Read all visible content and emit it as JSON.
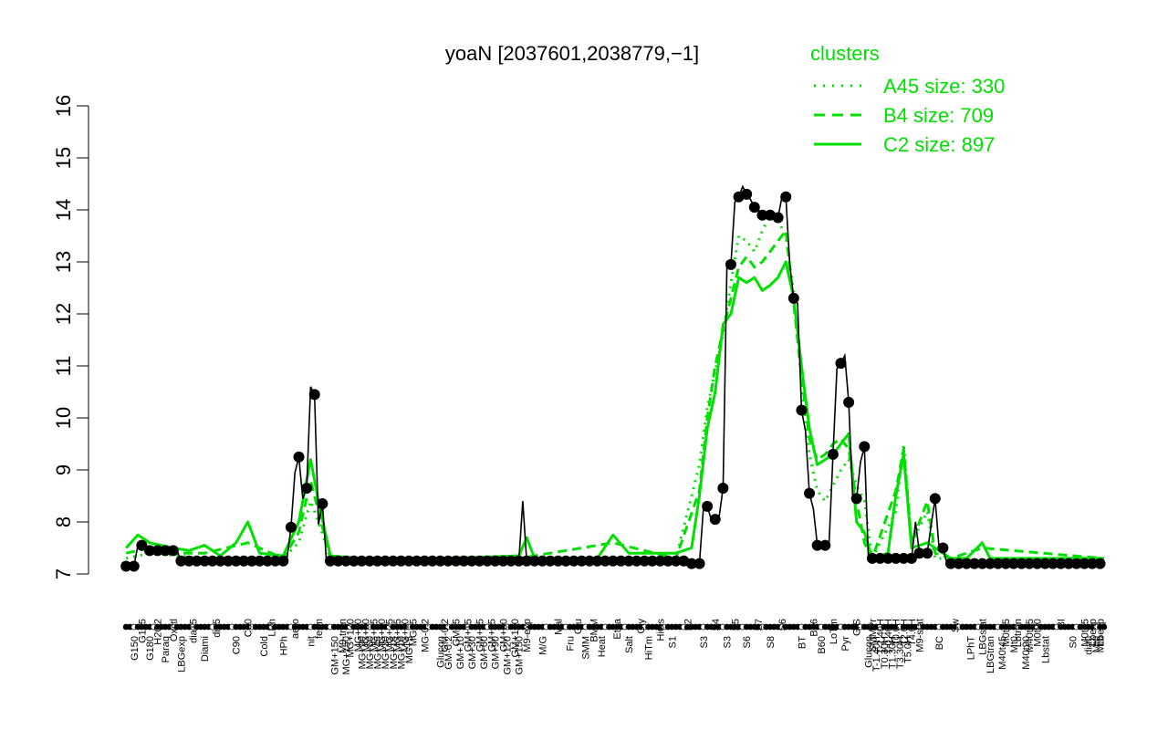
{
  "chart_data": {
    "type": "line",
    "title": "yoaN [2037601,2038779,−1]",
    "xlabel": "",
    "ylabel": "",
    "ylim": [
      7,
      16
    ],
    "yticks": [
      "7",
      "8",
      "9",
      "10",
      "11",
      "12",
      "13",
      "14",
      "15",
      "16"
    ],
    "legend": {
      "title": "clusters",
      "placement": "top-right",
      "entries": [
        {
          "label": "A45 size: 330",
          "style": "dotted"
        },
        {
          "label": "B4 size: 709",
          "style": "dashed"
        },
        {
          "label": "C2 size: 897",
          "style": "solid"
        }
      ]
    },
    "colors": {
      "cluster": "#00e000",
      "gene": "#000000"
    },
    "x_labels_lower": [
      {
        "i": 2,
        "label": "G150"
      },
      {
        "i": 6,
        "label": "G180"
      },
      {
        "i": 10,
        "label": "Paraq"
      },
      {
        "i": 14,
        "label": "LBGexp"
      },
      {
        "i": 20,
        "label": "Diami"
      },
      {
        "i": 28,
        "label": "C90"
      },
      {
        "i": 35,
        "label": "Cold"
      },
      {
        "i": 40,
        "label": "HPh"
      },
      {
        "i": 47,
        "label": "nit"
      },
      {
        "i": 53,
        "label": "GM+150"
      },
      {
        "i": 56,
        "label": "MG+150"
      },
      {
        "i": 60,
        "label": "MG+90"
      },
      {
        "i": 62,
        "label": "MG+60"
      },
      {
        "i": 64,
        "label": "MG+45"
      },
      {
        "i": 66,
        "label": "MG+30"
      },
      {
        "i": 68,
        "label": "MG+15"
      },
      {
        "i": 70,
        "label": "MG+10"
      },
      {
        "i": 72,
        "label": "MG+5"
      },
      {
        "i": 80,
        "label": "Glucon"
      },
      {
        "i": 82,
        "label": "GM-0.2"
      },
      {
        "i": 85,
        "label": "GM+10"
      },
      {
        "i": 88,
        "label": "GM+30"
      },
      {
        "i": 91,
        "label": "GM+60"
      },
      {
        "i": 94,
        "label": "GM+90"
      },
      {
        "i": 97,
        "label": "GM+120"
      },
      {
        "i": 100,
        "label": "GM+150"
      },
      {
        "i": 106,
        "label": "M/G"
      },
      {
        "i": 113,
        "label": "Fru"
      },
      {
        "i": 117,
        "label": "SMM"
      },
      {
        "i": 121,
        "label": "Heat"
      },
      {
        "i": 128,
        "label": "Salt"
      },
      {
        "i": 133,
        "label": "HiTm"
      },
      {
        "i": 139,
        "label": "S1"
      },
      {
        "i": 147,
        "label": "S3"
      },
      {
        "i": 153,
        "label": "S3"
      },
      {
        "i": 158,
        "label": "S6"
      },
      {
        "i": 164,
        "label": "S8"
      },
      {
        "i": 172,
        "label": "BT"
      },
      {
        "i": 177,
        "label": "B60"
      },
      {
        "i": 183,
        "label": "Pyr"
      },
      {
        "i": 189,
        "label": "Glucon"
      },
      {
        "i": 191,
        "label": "T-1.40H"
      },
      {
        "i": 193,
        "label": "T0.30H"
      },
      {
        "i": 195,
        "label": "T1.30H"
      },
      {
        "i": 197,
        "label": "T3.30H"
      },
      {
        "i": 199,
        "label": "T5.0H"
      },
      {
        "i": 207,
        "label": "BC"
      },
      {
        "i": 215,
        "label": "LPhT"
      },
      {
        "i": 220,
        "label": "LBGtran"
      },
      {
        "i": 223,
        "label": "M40t45"
      },
      {
        "i": 226,
        "label": "Mt0"
      },
      {
        "i": 229,
        "label": "M40t90"
      },
      {
        "i": 234,
        "label": "Lbstat"
      },
      {
        "i": 241,
        "label": "S0"
      },
      {
        "i": 245,
        "label": "dia0"
      },
      {
        "i": 247,
        "label": "Mt0"
      },
      {
        "i": 248,
        "label": "Mt0"
      }
    ],
    "x_labels_upper": [
      {
        "i": 4,
        "label": "G135"
      },
      {
        "i": 8,
        "label": "H2O2"
      },
      {
        "i": 12,
        "label": "Oxctl"
      },
      {
        "i": 17,
        "label": "dia15"
      },
      {
        "i": 23,
        "label": "dia5"
      },
      {
        "i": 31,
        "label": "C30"
      },
      {
        "i": 37,
        "label": "LPh"
      },
      {
        "i": 43,
        "label": "aero"
      },
      {
        "i": 49,
        "label": "ferm"
      },
      {
        "i": 55,
        "label": "M9-tran"
      },
      {
        "i": 57,
        "label": "MG+120"
      },
      {
        "i": 59,
        "label": "MG+90"
      },
      {
        "i": 61,
        "label": "MG+60"
      },
      {
        "i": 63,
        "label": "MG+45"
      },
      {
        "i": 65,
        "label": "MG+30"
      },
      {
        "i": 67,
        "label": "MG+25"
      },
      {
        "i": 69,
        "label": "MG+15"
      },
      {
        "i": 71,
        "label": "MG+10"
      },
      {
        "i": 73,
        "label": "MG+5"
      },
      {
        "i": 76,
        "label": "MG-0.2"
      },
      {
        "i": 81,
        "label": "GM-0.2"
      },
      {
        "i": 84,
        "label": "GM+5"
      },
      {
        "i": 87,
        "label": "GM+15"
      },
      {
        "i": 90,
        "label": "GM+25"
      },
      {
        "i": 93,
        "label": "GM+45"
      },
      {
        "i": 96,
        "label": "GM+90"
      },
      {
        "i": 99,
        "label": "GM+120"
      },
      {
        "i": 102,
        "label": "M9-exp"
      },
      {
        "i": 110,
        "label": "Mal"
      },
      {
        "i": 115,
        "label": "Glu"
      },
      {
        "i": 119,
        "label": "BMM"
      },
      {
        "i": 125,
        "label": "Etha"
      },
      {
        "i": 131,
        "label": "Gly"
      },
      {
        "i": 136,
        "label": "HiOs"
      },
      {
        "i": 143,
        "label": "S2"
      },
      {
        "i": 150,
        "label": "S4"
      },
      {
        "i": 155,
        "label": "S5"
      },
      {
        "i": 161,
        "label": "S7"
      },
      {
        "i": 167,
        "label": "S6"
      },
      {
        "i": 175,
        "label": "B36"
      },
      {
        "i": 180,
        "label": "LoTm"
      },
      {
        "i": 186,
        "label": "G/S"
      },
      {
        "i": 190,
        "label": "SMMPr"
      },
      {
        "i": 192,
        "label": "T-2.40H"
      },
      {
        "i": 194,
        "label": "T-0.40H"
      },
      {
        "i": 196,
        "label": "T0.0H"
      },
      {
        "i": 198,
        "label": "T2.0H"
      },
      {
        "i": 200,
        "label": "T4.0H"
      },
      {
        "i": 202,
        "label": "M9-stat"
      },
      {
        "i": 211,
        "label": "Sw"
      },
      {
        "i": 218,
        "label": "LBGstat"
      },
      {
        "i": 224,
        "label": "M0t45"
      },
      {
        "i": 227,
        "label": "Lbtran"
      },
      {
        "i": 230,
        "label": "M40t45"
      },
      {
        "i": 232,
        "label": "M0t90"
      },
      {
        "i": 238,
        "label": "BI"
      },
      {
        "i": 244,
        "label": "M0t45"
      },
      {
        "i": 246,
        "label": "Lbexp"
      },
      {
        "i": 248,
        "label": "Lbexp"
      }
    ],
    "x_count": 250,
    "gene_profile": [
      {
        "from": 0,
        "to": 2,
        "y": 7.15
      },
      {
        "from": 3,
        "to": 4,
        "y": 7.55
      },
      {
        "from": 5,
        "to": 13,
        "y": 7.45
      },
      {
        "from": 14,
        "to": 40,
        "y": 7.25
      },
      {
        "from": 41,
        "to": 41,
        "y": 7.3
      },
      {
        "from": 42,
        "to": 42,
        "y": 7.9
      },
      {
        "from": 43,
        "to": 43,
        "y": 8.95
      },
      {
        "from": 44,
        "to": 44,
        "y": 9.25
      },
      {
        "from": 45,
        "to": 45,
        "y": 8.45
      },
      {
        "from": 46,
        "to": 46,
        "y": 8.65
      },
      {
        "from": 47,
        "to": 47,
        "y": 10.6
      },
      {
        "from": 48,
        "to": 48,
        "y": 10.45
      },
      {
        "from": 49,
        "to": 49,
        "y": 7.95
      },
      {
        "from": 50,
        "to": 50,
        "y": 8.35
      },
      {
        "from": 51,
        "to": 100,
        "y": 7.25
      },
      {
        "from": 101,
        "to": 101,
        "y": 8.4
      },
      {
        "from": 102,
        "to": 143,
        "y": 7.25
      },
      {
        "from": 144,
        "to": 146,
        "y": 7.2
      },
      {
        "from": 147,
        "to": 147,
        "y": 8.25
      },
      {
        "from": 148,
        "to": 148,
        "y": 8.3
      },
      {
        "from": 149,
        "to": 150,
        "y": 8.05
      },
      {
        "from": 151,
        "to": 151,
        "y": 8.1
      },
      {
        "from": 152,
        "to": 152,
        "y": 8.65
      },
      {
        "from": 153,
        "to": 153,
        "y": 13.0
      },
      {
        "from": 154,
        "to": 154,
        "y": 12.95
      },
      {
        "from": 155,
        "to": 155,
        "y": 14.15
      },
      {
        "from": 156,
        "to": 156,
        "y": 14.25
      },
      {
        "from": 157,
        "to": 157,
        "y": 14.45
      },
      {
        "from": 158,
        "to": 158,
        "y": 14.3
      },
      {
        "from": 159,
        "to": 159,
        "y": 14.2
      },
      {
        "from": 160,
        "to": 160,
        "y": 14.05
      },
      {
        "from": 161,
        "to": 161,
        "y": 14.0
      },
      {
        "from": 162,
        "to": 163,
        "y": 13.9
      },
      {
        "from": 164,
        "to": 165,
        "y": 13.9
      },
      {
        "from": 166,
        "to": 166,
        "y": 13.85
      },
      {
        "from": 167,
        "to": 168,
        "y": 14.25
      },
      {
        "from": 169,
        "to": 169,
        "y": 12.95
      },
      {
        "from": 170,
        "to": 170,
        "y": 12.3
      },
      {
        "from": 171,
        "to": 171,
        "y": 12.2
      },
      {
        "from": 172,
        "to": 172,
        "y": 10.15
      },
      {
        "from": 173,
        "to": 173,
        "y": 9.75
      },
      {
        "from": 174,
        "to": 174,
        "y": 8.55
      },
      {
        "from": 175,
        "to": 175,
        "y": 8.25
      },
      {
        "from": 176,
        "to": 178,
        "y": 7.55
      },
      {
        "from": 179,
        "to": 179,
        "y": 7.6
      },
      {
        "from": 180,
        "to": 180,
        "y": 9.3
      },
      {
        "from": 181,
        "to": 181,
        "y": 10.95
      },
      {
        "from": 182,
        "to": 182,
        "y": 11.05
      },
      {
        "from": 183,
        "to": 183,
        "y": 11.2
      },
      {
        "from": 184,
        "to": 184,
        "y": 10.3
      },
      {
        "from": 185,
        "to": 185,
        "y": 8.5
      },
      {
        "from": 186,
        "to": 186,
        "y": 8.45
      },
      {
        "from": 187,
        "to": 187,
        "y": 9.15
      },
      {
        "from": 188,
        "to": 188,
        "y": 9.45
      },
      {
        "from": 189,
        "to": 200,
        "y": 7.3
      },
      {
        "from": 201,
        "to": 201,
        "y": 8.0
      },
      {
        "from": 202,
        "to": 204,
        "y": 7.4
      },
      {
        "from": 205,
        "to": 205,
        "y": 7.95
      },
      {
        "from": 206,
        "to": 206,
        "y": 8.45
      },
      {
        "from": 207,
        "to": 208,
        "y": 7.5
      },
      {
        "from": 209,
        "to": 249,
        "y": 7.2
      }
    ],
    "cluster_C2": [
      [
        0,
        7.5
      ],
      [
        3,
        7.75
      ],
      [
        6,
        7.6
      ],
      [
        12,
        7.5
      ],
      [
        16,
        7.45
      ],
      [
        20,
        7.55
      ],
      [
        24,
        7.35
      ],
      [
        28,
        7.6
      ],
      [
        31,
        8.0
      ],
      [
        34,
        7.4
      ],
      [
        40,
        7.35
      ],
      [
        44,
        8.0
      ],
      [
        47,
        9.2
      ],
      [
        49,
        8.4
      ],
      [
        52,
        7.35
      ],
      [
        60,
        7.3
      ],
      [
        80,
        7.3
      ],
      [
        100,
        7.35
      ],
      [
        102,
        7.7
      ],
      [
        104,
        7.3
      ],
      [
        120,
        7.3
      ],
      [
        124,
        7.75
      ],
      [
        128,
        7.4
      ],
      [
        140,
        7.4
      ],
      [
        144,
        7.5
      ],
      [
        146,
        8.5
      ],
      [
        148,
        9.8
      ],
      [
        150,
        10.5
      ],
      [
        152,
        11.8
      ],
      [
        154,
        12.0
      ],
      [
        156,
        12.7
      ],
      [
        158,
        12.6
      ],
      [
        160,
        12.7
      ],
      [
        162,
        12.45
      ],
      [
        164,
        12.55
      ],
      [
        166,
        12.7
      ],
      [
        168,
        13.0
      ],
      [
        170,
        12.3
      ],
      [
        172,
        11.0
      ],
      [
        174,
        9.8
      ],
      [
        176,
        9.1
      ],
      [
        178,
        9.2
      ],
      [
        180,
        9.3
      ],
      [
        182,
        9.5
      ],
      [
        184,
        9.7
      ],
      [
        186,
        8.0
      ],
      [
        188,
        7.8
      ],
      [
        190,
        7.3
      ],
      [
        194,
        7.4
      ],
      [
        196,
        8.5
      ],
      [
        198,
        9.3
      ],
      [
        200,
        7.5
      ],
      [
        204,
        7.6
      ],
      [
        206,
        7.5
      ],
      [
        210,
        7.3
      ],
      [
        214,
        7.3
      ],
      [
        218,
        7.6
      ],
      [
        220,
        7.3
      ],
      [
        249,
        7.3
      ]
    ],
    "cluster_B4": [
      [
        0,
        7.4
      ],
      [
        6,
        7.5
      ],
      [
        12,
        7.4
      ],
      [
        20,
        7.4
      ],
      [
        31,
        7.6
      ],
      [
        40,
        7.3
      ],
      [
        44,
        7.8
      ],
      [
        47,
        8.8
      ],
      [
        49,
        8.2
      ],
      [
        52,
        7.3
      ],
      [
        100,
        7.3
      ],
      [
        124,
        7.6
      ],
      [
        140,
        7.3
      ],
      [
        146,
        8.6
      ],
      [
        148,
        10.0
      ],
      [
        150,
        11.0
      ],
      [
        152,
        11.7
      ],
      [
        154,
        12.3
      ],
      [
        156,
        12.9
      ],
      [
        158,
        13.1
      ],
      [
        160,
        12.9
      ],
      [
        162,
        13.0
      ],
      [
        164,
        13.2
      ],
      [
        166,
        13.4
      ],
      [
        168,
        13.6
      ],
      [
        170,
        12.2
      ],
      [
        172,
        10.8
      ],
      [
        174,
        9.6
      ],
      [
        176,
        9.2
      ],
      [
        178,
        9.3
      ],
      [
        180,
        9.5
      ],
      [
        182,
        9.6
      ],
      [
        184,
        9.4
      ],
      [
        186,
        8.4
      ],
      [
        188,
        7.6
      ],
      [
        190,
        7.3
      ],
      [
        196,
        8.6
      ],
      [
        198,
        9.4
      ],
      [
        200,
        7.6
      ],
      [
        204,
        8.4
      ],
      [
        206,
        7.4
      ],
      [
        210,
        7.3
      ],
      [
        218,
        7.5
      ],
      [
        249,
        7.3
      ]
    ],
    "cluster_A45": [
      [
        0,
        7.3
      ],
      [
        6,
        7.4
      ],
      [
        20,
        7.3
      ],
      [
        40,
        7.3
      ],
      [
        44,
        7.6
      ],
      [
        47,
        8.4
      ],
      [
        49,
        8.0
      ],
      [
        52,
        7.3
      ],
      [
        100,
        7.3
      ],
      [
        140,
        7.3
      ],
      [
        146,
        9.1
      ],
      [
        148,
        10.2
      ],
      [
        150,
        10.9
      ],
      [
        152,
        11.6
      ],
      [
        154,
        12.6
      ],
      [
        156,
        13.5
      ],
      [
        158,
        13.4
      ],
      [
        160,
        13.2
      ],
      [
        162,
        13.6
      ],
      [
        164,
        13.9
      ],
      [
        166,
        13.8
      ],
      [
        168,
        13.5
      ],
      [
        170,
        12.4
      ],
      [
        172,
        10.7
      ],
      [
        174,
        9.3
      ],
      [
        176,
        8.6
      ],
      [
        178,
        8.4
      ],
      [
        180,
        8.7
      ],
      [
        182,
        9.0
      ],
      [
        184,
        9.2
      ],
      [
        186,
        8.7
      ],
      [
        188,
        8.4
      ],
      [
        190,
        7.3
      ],
      [
        196,
        8.2
      ],
      [
        198,
        9.5
      ],
      [
        200,
        7.6
      ],
      [
        204,
        8.2
      ],
      [
        206,
        7.3
      ],
      [
        249,
        7.2
      ]
    ]
  }
}
